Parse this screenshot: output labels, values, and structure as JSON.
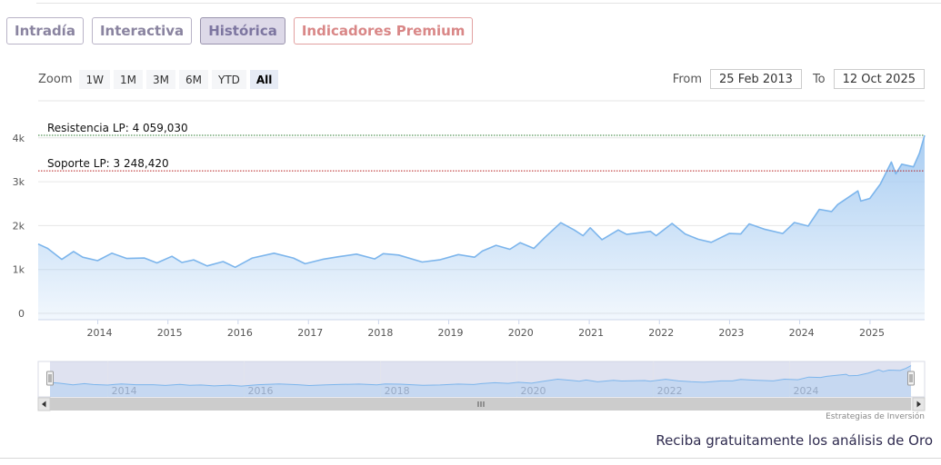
{
  "tabs": [
    {
      "label": "Intradía",
      "state": "normal"
    },
    {
      "label": "Interactiva",
      "state": "normal"
    },
    {
      "label": "Histórica",
      "state": "active"
    },
    {
      "label": "Indicadores Premium",
      "state": "premium"
    }
  ],
  "zoom": {
    "label": "Zoom",
    "buttons": [
      "1W",
      "1M",
      "3M",
      "6M",
      "YTD",
      "All"
    ],
    "selected": "All"
  },
  "range": {
    "from_label": "From",
    "from_value": "25 Feb 2013",
    "to_label": "To",
    "to_value": "12 Oct 2025"
  },
  "colors": {
    "series_line": "#7cb5ec",
    "area_fill": "#a9cdf2",
    "navigator_mask": "#c5cbe3",
    "resistance_line": "#2e7d32",
    "support_line": "#b71c1c"
  },
  "chart_data": {
    "type": "area",
    "title": "",
    "xlabel": "",
    "ylabel": "",
    "x_range": [
      "2013-02-25",
      "2025-10-12"
    ],
    "ylim": [
      0,
      4000
    ],
    "y_ticks": [
      {
        "value": 0,
        "label": "0"
      },
      {
        "value": 1000,
        "label": "1k"
      },
      {
        "value": 2000,
        "label": "2k"
      },
      {
        "value": 3000,
        "label": "3k"
      },
      {
        "value": 4000,
        "label": "4k"
      }
    ],
    "x_ticks": [
      "2014",
      "2015",
      "2016",
      "2017",
      "2018",
      "2019",
      "2020",
      "2021",
      "2022",
      "2023",
      "2024",
      "2025"
    ],
    "navigator_ticks": [
      "2014",
      "2016",
      "2018",
      "2020",
      "2022",
      "2024"
    ],
    "grid": true,
    "legend": "none",
    "series": [
      {
        "points": [
          [
            "2013-02-25",
            1580
          ],
          [
            "2013-04-15",
            1480
          ],
          [
            "2013-06-28",
            1230
          ],
          [
            "2013-08-28",
            1410
          ],
          [
            "2013-10-15",
            1280
          ],
          [
            "2013-12-31",
            1200
          ],
          [
            "2014-03-15",
            1370
          ],
          [
            "2014-06-01",
            1250
          ],
          [
            "2014-09-01",
            1260
          ],
          [
            "2014-11-05",
            1150
          ],
          [
            "2015-01-22",
            1300
          ],
          [
            "2015-03-15",
            1160
          ],
          [
            "2015-05-15",
            1220
          ],
          [
            "2015-07-24",
            1080
          ],
          [
            "2015-10-15",
            1180
          ],
          [
            "2015-12-17",
            1050
          ],
          [
            "2016-03-15",
            1260
          ],
          [
            "2016-07-06",
            1370
          ],
          [
            "2016-10-15",
            1260
          ],
          [
            "2016-12-15",
            1130
          ],
          [
            "2017-03-15",
            1230
          ],
          [
            "2017-06-06",
            1290
          ],
          [
            "2017-09-08",
            1350
          ],
          [
            "2017-12-12",
            1240
          ],
          [
            "2018-01-25",
            1360
          ],
          [
            "2018-04-15",
            1330
          ],
          [
            "2018-08-16",
            1170
          ],
          [
            "2018-11-15",
            1220
          ],
          [
            "2019-02-20",
            1340
          ],
          [
            "2019-05-15",
            1280
          ],
          [
            "2019-06-25",
            1420
          ],
          [
            "2019-09-04",
            1550
          ],
          [
            "2019-11-15",
            1460
          ],
          [
            "2020-01-08",
            1610
          ],
          [
            "2020-03-19",
            1480
          ],
          [
            "2020-05-15",
            1730
          ],
          [
            "2020-08-06",
            2067
          ],
          [
            "2020-10-15",
            1900
          ],
          [
            "2020-11-30",
            1770
          ],
          [
            "2021-01-06",
            1950
          ],
          [
            "2021-03-08",
            1680
          ],
          [
            "2021-06-01",
            1900
          ],
          [
            "2021-07-15",
            1800
          ],
          [
            "2021-11-16",
            1870
          ],
          [
            "2021-12-15",
            1770
          ],
          [
            "2022-03-08",
            2050
          ],
          [
            "2022-05-15",
            1810
          ],
          [
            "2022-07-21",
            1690
          ],
          [
            "2022-09-28",
            1620
          ],
          [
            "2022-12-30",
            1820
          ],
          [
            "2023-02-28",
            1810
          ],
          [
            "2023-04-13",
            2040
          ],
          [
            "2023-06-30",
            1920
          ],
          [
            "2023-10-05",
            1820
          ],
          [
            "2023-12-04",
            2070
          ],
          [
            "2024-02-14",
            1990
          ],
          [
            "2024-04-12",
            2370
          ],
          [
            "2024-06-15",
            2320
          ],
          [
            "2024-07-17",
            2480
          ],
          [
            "2024-10-30",
            2790
          ],
          [
            "2024-11-14",
            2560
          ],
          [
            "2024-12-31",
            2620
          ],
          [
            "2025-02-24",
            2950
          ],
          [
            "2025-04-22",
            3450
          ],
          [
            "2025-05-15",
            3180
          ],
          [
            "2025-06-15",
            3400
          ],
          [
            "2025-08-15",
            3340
          ],
          [
            "2025-09-15",
            3650
          ],
          [
            "2025-10-12",
            4059
          ]
        ]
      }
    ],
    "annotations": [
      {
        "label": "Resistencia LP: 4 059,030",
        "value": 4059.03,
        "style": "dotted"
      },
      {
        "label": "Soporte LP: 3 248,420",
        "value": 3248.42,
        "style": "dotted"
      }
    ]
  },
  "credit": "Estrategias de Inversión",
  "promo": "Reciba gratuitamente los análisis de Oro"
}
